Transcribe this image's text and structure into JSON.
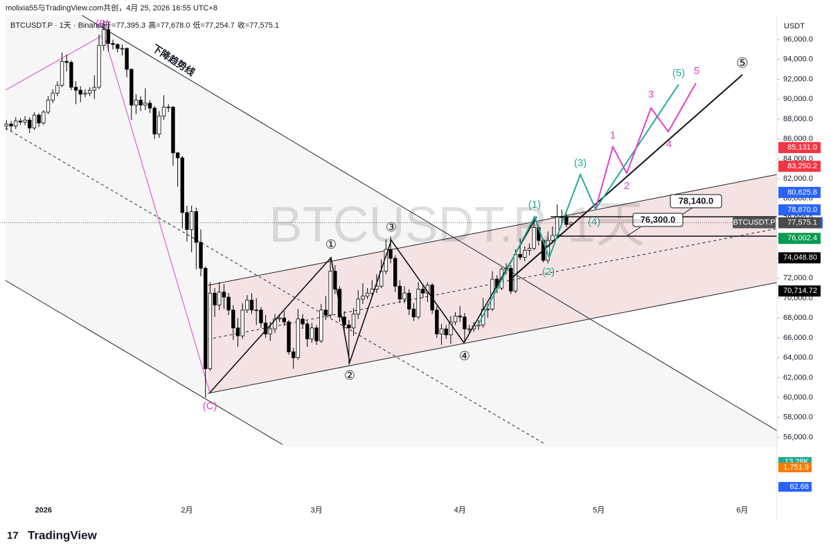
{
  "header": {
    "credit": "molixia55与TradingView.com共创，4月 25, 2026 16:55 UTC+8"
  },
  "chart_data": {
    "type": "candlestick",
    "symbol": "BTCUSDT.P · 1天 · Binance",
    "ohlc_legend": [
      {
        "label": "开=",
        "value": "77,395.3"
      },
      {
        "label": "高=",
        "value": "77,678.0"
      },
      {
        "label": "低=",
        "value": "77,254.7"
      },
      {
        "label": "收=",
        "value": "77,575.1"
      }
    ],
    "watermark": "BTCUSDT.P, 1天",
    "currency": "USDT",
    "up_color": "#ffffff",
    "down_color": "#000000",
    "border_color": "#000000",
    "candles": [
      [
        87300,
        87900,
        86900,
        87500
      ],
      [
        87500,
        87800,
        86800,
        87300
      ],
      [
        87300,
        88200,
        87000,
        87800
      ],
      [
        87800,
        88100,
        87400,
        87700
      ],
      [
        87700,
        88300,
        87400,
        87900
      ],
      [
        87900,
        88200,
        86600,
        87100
      ],
      [
        87100,
        88700,
        86900,
        88400
      ],
      [
        88400,
        88600,
        87200,
        87600
      ],
      [
        87600,
        88900,
        87400,
        88700
      ],
      [
        88700,
        90300,
        88500,
        89900
      ],
      [
        89900,
        91000,
        89600,
        90600
      ],
      [
        90600,
        91800,
        90300,
        91400
      ],
      [
        91400,
        94700,
        91200,
        93800
      ],
      [
        93800,
        94500,
        92800,
        93700
      ],
      [
        93700,
        93900,
        90900,
        91200
      ],
      [
        91200,
        91800,
        89500,
        90900
      ],
      [
        90900,
        91300,
        89700,
        90500
      ],
      [
        90500,
        91000,
        90200,
        90600
      ],
      [
        90600,
        91200,
        90300,
        90900
      ],
      [
        90900,
        92400,
        90000,
        91200
      ],
      [
        91200,
        96500,
        91000,
        95400
      ],
      [
        95400,
        97900,
        94900,
        97000
      ],
      [
        97000,
        97600,
        94800,
        95600
      ],
      [
        95600,
        96000,
        95000,
        95500
      ],
      [
        95500,
        95600,
        94700,
        95100
      ],
      [
        95100,
        95500,
        94400,
        95100
      ],
      [
        95100,
        95200,
        92200,
        93000
      ],
      [
        93000,
        93100,
        87900,
        89400
      ],
      [
        89400,
        90500,
        88500,
        89900
      ],
      [
        89900,
        90300,
        88800,
        89400
      ],
      [
        89400,
        91100,
        88900,
        89600
      ],
      [
        89600,
        89900,
        88600,
        89100
      ],
      [
        89100,
        89300,
        86000,
        86500
      ],
      [
        86500,
        88800,
        86100,
        88300
      ],
      [
        88300,
        90400,
        87900,
        89200
      ],
      [
        89200,
        89500,
        88700,
        89200
      ],
      [
        89200,
        89300,
        83300,
        84600
      ],
      [
        84600,
        84700,
        81200,
        84100
      ],
      [
        84100,
        84300,
        77000,
        78600
      ],
      [
        78600,
        79300,
        75700,
        76900
      ],
      [
        76900,
        79300,
        74600,
        78700
      ],
      [
        78700,
        79100,
        72900,
        75600
      ],
      [
        75600,
        76900,
        72200,
        73000
      ],
      [
        73000,
        73200,
        60000,
        62900
      ],
      [
        62900,
        71600,
        62700,
        70500
      ],
      [
        70500,
        71000,
        68100,
        69300
      ],
      [
        69300,
        71600,
        68800,
        70600
      ],
      [
        70600,
        71400,
        68900,
        70100
      ],
      [
        70100,
        70500,
        68300,
        68800
      ],
      [
        68800,
        69300,
        65800,
        67000
      ],
      [
        67000,
        68000,
        65100,
        66200
      ],
      [
        66200,
        69500,
        65900,
        68800
      ],
      [
        68800,
        70300,
        68500,
        69800
      ],
      [
        69800,
        70500,
        68400,
        68800
      ],
      [
        68800,
        70000,
        67300,
        68800
      ],
      [
        68800,
        69100,
        67000,
        67500
      ],
      [
        67500,
        68300,
        66000,
        66400
      ],
      [
        66400,
        67600,
        65700,
        66900
      ],
      [
        66900,
        68400,
        66500,
        67900
      ],
      [
        67900,
        68400,
        67600,
        68000
      ],
      [
        68000,
        68700,
        67200,
        67600
      ],
      [
        67600,
        67800,
        64300,
        64600
      ],
      [
        64600,
        65000,
        62900,
        64000
      ],
      [
        64000,
        68900,
        63800,
        67900
      ],
      [
        67900,
        68400,
        66900,
        67400
      ],
      [
        67400,
        67700,
        65100,
        65900
      ],
      [
        65900,
        67500,
        65500,
        67000
      ],
      [
        67000,
        67300,
        65300,
        65700
      ],
      [
        65700,
        69400,
        65500,
        68800
      ],
      [
        68800,
        70200,
        67800,
        68300
      ],
      [
        68300,
        74100,
        68000,
        72700
      ],
      [
        72700,
        73300,
        70400,
        70900
      ],
      [
        70900,
        71200,
        67600,
        68100
      ],
      [
        68100,
        68700,
        66400,
        67300
      ],
      [
        67300,
        67800,
        63300,
        67000
      ],
      [
        67000,
        69000,
        66200,
        68400
      ],
      [
        68400,
        70800,
        67900,
        69900
      ],
      [
        69900,
        71500,
        69400,
        70200
      ],
      [
        70200,
        71000,
        69900,
        70500
      ],
      [
        70500,
        71800,
        70200,
        70900
      ],
      [
        70900,
        72400,
        70500,
        71200
      ],
      [
        71200,
        73900,
        71000,
        72700
      ],
      [
        72700,
        75900,
        72400,
        74900
      ],
      [
        74900,
        76200,
        73500,
        74000
      ],
      [
        74000,
        74300,
        70600,
        71200
      ],
      [
        71200,
        71800,
        69500,
        69900
      ],
      [
        69900,
        71200,
        69500,
        70500
      ],
      [
        70500,
        70900,
        68300,
        68900
      ],
      [
        68900,
        69500,
        67700,
        68100
      ],
      [
        68100,
        71600,
        67900,
        70900
      ],
      [
        70900,
        71400,
        70000,
        70500
      ],
      [
        70500,
        71600,
        69600,
        71300
      ],
      [
        71300,
        71500,
        68400,
        68800
      ],
      [
        68800,
        69200,
        66000,
        66400
      ],
      [
        66400,
        67400,
        65300,
        66900
      ],
      [
        66900,
        67300,
        65900,
        66300
      ],
      [
        66300,
        68200,
        65400,
        67600
      ],
      [
        67600,
        68600,
        67300,
        68200
      ],
      [
        68200,
        69200,
        67600,
        68100
      ],
      [
        68100,
        68500,
        65600,
        66900
      ],
      [
        66900,
        67300,
        66500,
        66900
      ],
      [
        66900,
        67600,
        66600,
        67200
      ],
      [
        67200,
        67800,
        66800,
        67300
      ],
      [
        67300,
        70000,
        67000,
        68900
      ],
      [
        68900,
        69400,
        68000,
        68900
      ],
      [
        68900,
        72700,
        68700,
        71900
      ],
      [
        71900,
        72300,
        70500,
        71000
      ],
      [
        71000,
        73100,
        70800,
        72900
      ],
      [
        72900,
        73500,
        72400,
        73000
      ],
      [
        73000,
        73300,
        70400,
        70700
      ],
      [
        70700,
        74900,
        70500,
        74400
      ],
      [
        74400,
        76000,
        73800,
        74100
      ],
      [
        74100,
        75200,
        73700,
        74800
      ],
      [
        74800,
        75500,
        74300,
        75000
      ],
      [
        75000,
        78200,
        74800,
        77100
      ],
      [
        77100,
        77300,
        75300,
        75800
      ],
      [
        75800,
        76000,
        73600,
        73800
      ],
      [
        73800,
        76700,
        73500,
        75800
      ],
      [
        75800,
        77200,
        75500,
        76300
      ],
      [
        76300,
        79400,
        76000,
        78200
      ],
      [
        78200,
        78900,
        77400,
        78100
      ],
      [
        78100,
        78500,
        77100,
        77400
      ],
      [
        77395.3,
        77678,
        77254.7,
        77575.1
      ]
    ],
    "xlim": [
      -1.4,
      166.5
    ],
    "xticks": [
      {
        "value": 8,
        "label": "2026"
      },
      {
        "value": 39,
        "label": "2月"
      },
      {
        "value": 67,
        "label": "3月"
      },
      {
        "value": 98,
        "label": "4月"
      },
      {
        "value": 128,
        "label": "5月"
      },
      {
        "value": 159,
        "label": "6月"
      }
    ],
    "ylim": [
      48100,
      98440
    ],
    "yticks": [
      {
        "value": 56000,
        "label": "56,000.0"
      },
      {
        "value": 58000,
        "label": "58,000.0"
      },
      {
        "value": 60000,
        "label": "60,000.0"
      },
      {
        "value": 62000,
        "label": "62,000.0"
      },
      {
        "value": 64000,
        "label": "64,000.0"
      },
      {
        "value": 66000,
        "label": "66,000.0"
      },
      {
        "value": 68000,
        "label": "68,000.0"
      },
      {
        "value": 70000,
        "label": "70,000.0"
      },
      {
        "value": 72000,
        "label": "72,000.0"
      },
      {
        "value": 74000,
        "label": "74,000.0"
      },
      {
        "value": 76000,
        "label": "76,000.0"
      },
      {
        "value": 78000,
        "label": "78,000.0"
      },
      {
        "value": 80000,
        "label": "80,000.0"
      },
      {
        "value": 82000,
        "label": "82,000.0"
      },
      {
        "value": 84000,
        "label": "84,000.0"
      },
      {
        "value": 86000,
        "label": "86,000.0"
      },
      {
        "value": 88000,
        "label": "88,000.0"
      },
      {
        "value": 90000,
        "label": "90,000.0"
      },
      {
        "value": 92000,
        "label": "92,000.0"
      },
      {
        "value": 94000,
        "label": "94,000.0"
      },
      {
        "value": 96000,
        "label": "96,000.0"
      }
    ],
    "price_line_label": "BTCUSDT.P",
    "price_labels": [
      {
        "value": 85131,
        "label": "85,131.0",
        "color": "#f23645"
      },
      {
        "value": 83250.2,
        "label": "83,250.2",
        "color": "#f23645"
      },
      {
        "value": 80625.8,
        "label": "80,625.8",
        "color": "#2962ff"
      },
      {
        "value": 78870,
        "label": "78,870.0",
        "color": "#2962ff"
      },
      {
        "value": 77575.1,
        "label": "77,575.1",
        "color": "#4a4a4a"
      },
      {
        "value": 76002.4,
        "label": "76,002.4",
        "color": "#089950"
      },
      {
        "value": 74048.8,
        "label": "74,048.80",
        "color": "#000000"
      },
      {
        "value": 70714.72,
        "label": "70,714.72",
        "color": "#000000"
      }
    ],
    "indicator_labels": [
      {
        "label": "13.28K",
        "color": "#22ab94"
      },
      {
        "label": "1,751.9",
        "color": "#f57c00"
      },
      {
        "label": "62.68",
        "color": "#2962ff"
      }
    ],
    "annotations": {
      "trend_line": "下降趋势线",
      "wave_b": "(B)",
      "wave_c": "(C)",
      "circle_1": "①",
      "circle_2": "②",
      "circle_3": "③",
      "circle_4": "④",
      "circle_5": "⑤",
      "teal_1": "(1)",
      "teal_2": "(2)",
      "teal_3": "(3)",
      "teal_4": "(4)",
      "teal_5": "(5)",
      "pink_1": "1",
      "pink_2": "2",
      "pink_3": "3",
      "pink_4": "4",
      "pink_5": "5",
      "level_high": "78,140.0",
      "level_low": "76,300.0"
    }
  },
  "branding": "TradingView"
}
